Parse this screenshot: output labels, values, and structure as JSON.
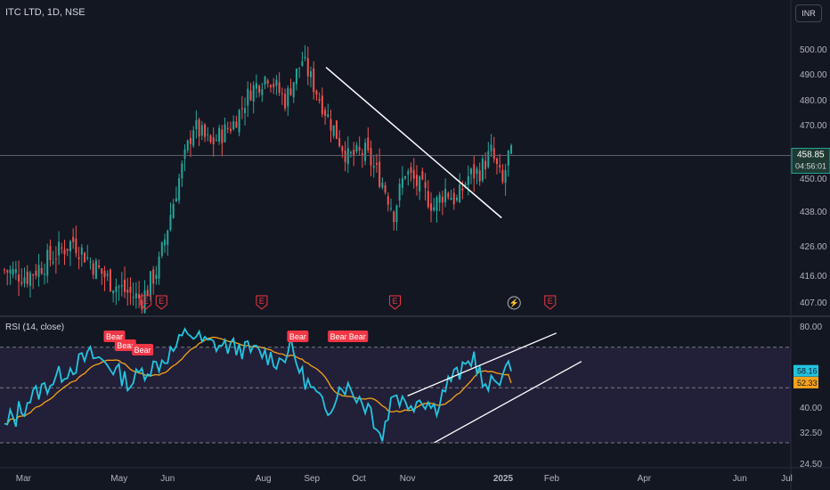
{
  "header": {
    "symbol_title": "ITC LTD, 1D, NSE",
    "currency_button": "INR"
  },
  "rsi_panel": {
    "title": "RSI (14, close)"
  },
  "colors": {
    "background": "#131722",
    "up": "#26a69a",
    "down": "#ef5350",
    "rsi_line": "#22c4e0",
    "rsi_ma": "#f7a21b",
    "trendline": "#ffffff",
    "bear_label": "#f23645",
    "earnings_marker": "#f23645"
  },
  "chart_data": [
    {
      "type": "candlestick",
      "title": "ITC LTD, 1D, NSE",
      "currency": "INR",
      "y_ticks": [
        "500.00",
        "490.00",
        "480.00",
        "470.00",
        "450.00",
        "438.00",
        "426.00",
        "416.00",
        "407.00"
      ],
      "y_tick_values": [
        500,
        490,
        480,
        470,
        450,
        438,
        426,
        416,
        407
      ],
      "x_tick_labels": [
        "Mar",
        "May",
        "Jun",
        "Aug",
        "Sep",
        "Oct",
        "Nov",
        "2025",
        "Feb",
        "Apr",
        "Jun",
        "Jul"
      ],
      "x_tick_dates": [
        "2024-03-01",
        "2024-05-01",
        "2024-06-01",
        "2024-08-01",
        "2024-09-01",
        "2024-10-01",
        "2024-11-01",
        "2025-01-01",
        "2025-02-01",
        "2025-04-01",
        "2025-06-01",
        "2025-07-01"
      ],
      "last_price": "458.85",
      "countdown": "04:56:01",
      "close_anchors": [
        [
          0,
          418
        ],
        [
          8,
          416
        ],
        [
          16,
          422
        ],
        [
          24,
          428
        ],
        [
          30,
          421
        ],
        [
          36,
          415
        ],
        [
          42,
          411
        ],
        [
          48,
          408
        ],
        [
          54,
          420
        ],
        [
          60,
          446
        ],
        [
          66,
          470
        ],
        [
          72,
          463
        ],
        [
          80,
          471
        ],
        [
          86,
          484
        ],
        [
          92,
          490
        ],
        [
          98,
          480
        ],
        [
          104,
          496
        ],
        [
          108,
          486
        ],
        [
          114,
          471
        ],
        [
          120,
          458
        ],
        [
          126,
          460
        ],
        [
          132,
          449
        ],
        [
          136,
          438
        ],
        [
          140,
          453
        ],
        [
          146,
          446
        ],
        [
          150,
          440
        ],
        [
          154,
          446
        ],
        [
          158,
          442
        ],
        [
          162,
          451
        ],
        [
          166,
          453
        ],
        [
          170,
          460
        ],
        [
          174,
          448
        ],
        [
          176,
          458.85
        ]
      ],
      "trendline": {
        "start": [
          "2024-09-10",
          493
        ],
        "end": [
          "2024-12-31",
          436
        ]
      },
      "event_markers": [
        {
          "label": "E",
          "date": "2024-05-18"
        },
        {
          "label": "E",
          "date": "2024-05-28"
        },
        {
          "label": "E",
          "date": "2024-07-31"
        },
        {
          "label": "E",
          "date": "2024-10-24"
        },
        {
          "label": "⚡",
          "date": "2025-01-08"
        },
        {
          "label": "E",
          "date": "2025-01-31"
        }
      ]
    },
    {
      "type": "line",
      "title": "RSI (14, close)",
      "y_ticks": [
        "80.00",
        "40.00",
        "32.50",
        "24.50"
      ],
      "y_tick_values": [
        80,
        40,
        32.5,
        24.5
      ],
      "levels": [
        70,
        30,
        50
      ],
      "rsi_value": "58.16",
      "ma_value": "52.33",
      "rsi_anchors": [
        [
          0,
          33
        ],
        [
          10,
          46
        ],
        [
          20,
          57
        ],
        [
          30,
          66
        ],
        [
          36,
          62
        ],
        [
          44,
          52
        ],
        [
          48,
          58
        ],
        [
          54,
          62
        ],
        [
          60,
          70
        ],
        [
          64,
          78
        ],
        [
          70,
          72
        ],
        [
          80,
          70
        ],
        [
          90,
          67
        ],
        [
          96,
          63
        ],
        [
          100,
          70
        ],
        [
          104,
          56
        ],
        [
          110,
          44
        ],
        [
          112,
          38
        ],
        [
          118,
          52
        ],
        [
          124,
          45
        ],
        [
          130,
          37
        ],
        [
          132,
          31
        ],
        [
          136,
          48
        ],
        [
          140,
          42
        ],
        [
          146,
          45
        ],
        [
          150,
          40
        ],
        [
          156,
          55
        ],
        [
          160,
          58
        ],
        [
          164,
          66
        ],
        [
          168,
          48
        ],
        [
          172,
          55
        ],
        [
          176,
          58.16
        ]
      ],
      "bear_labels": [
        {
          "label": "Bear",
          "date": "2024-04-28"
        },
        {
          "label": "Bear",
          "date": "2024-05-05"
        },
        {
          "label": "Bear",
          "date": "2024-05-16"
        },
        {
          "label": "Bear",
          "date": "2024-08-23"
        },
        {
          "label": "Bear",
          "date": "2024-09-18"
        },
        {
          "label": "Bear",
          "date": "2024-09-30"
        }
      ],
      "channel_lines": [
        {
          "start": [
            "2024-11-01",
            46
          ],
          "end": [
            "2025-02-04",
            77
          ]
        },
        {
          "start": [
            "2024-11-18",
            30
          ],
          "end": [
            "2025-02-20",
            63
          ]
        }
      ]
    }
  ]
}
